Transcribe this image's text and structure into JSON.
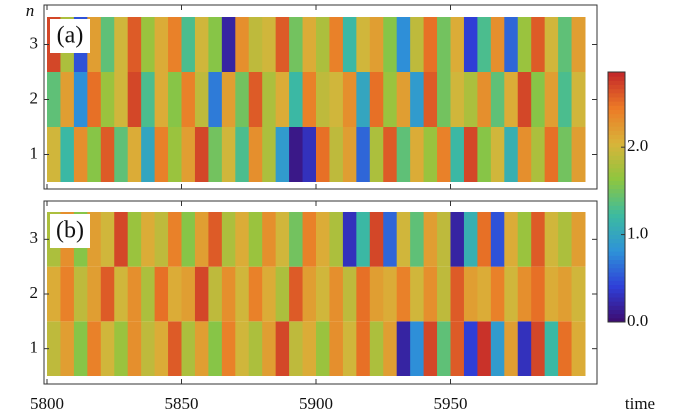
{
  "chart_data": {
    "type": "heatmap",
    "xlabel": "time",
    "ylabel": "n",
    "xlim": [
      5800,
      6000
    ],
    "xticks": [
      5800,
      5850,
      5900,
      5950
    ],
    "ylim": [
      0.5,
      3.5
    ],
    "yticks": [
      1,
      2,
      3
    ],
    "colormap": [
      "#3d0b6e",
      "#2f3fd8",
      "#2e93d8",
      "#3cbba0",
      "#8ec63f",
      "#d8b43a",
      "#ec7a26",
      "#c3262a"
    ],
    "colorbar": {
      "lim": [
        0,
        2.86
      ],
      "ticks": [
        {
          "value": 0,
          "label": "0.0"
        },
        {
          "value": 1,
          "label": "1.0"
        },
        {
          "value": 2,
          "label": "2.0"
        }
      ]
    },
    "panels": [
      {
        "label": "(a)",
        "rows": [
          [
            2.0,
            1.2,
            2.3,
            1.6,
            2.6,
            1.4,
            2.1,
            1.0,
            2.4,
            1.7,
            2.2,
            2.7,
            1.5,
            2.0,
            1.3,
            2.3,
            1.8,
            0.9,
            0.1,
            0.3,
            2.5,
            1.9,
            2.2,
            0.6,
            1.8,
            2.6,
            1.4,
            2.1,
            1.7,
            2.4,
            1.2,
            2.7,
            1.6,
            2.0,
            1.1,
            2.3,
            1.8,
            2.5,
            1.5,
            2.2
          ],
          [
            1.4,
            2.2,
            0.8,
            2.5,
            1.7,
            2.0,
            2.7,
            1.3,
            2.1,
            1.6,
            2.4,
            1.9,
            0.7,
            2.2,
            1.5,
            2.6,
            1.8,
            2.1,
            1.2,
            2.4,
            1.9,
            2.0,
            2.3,
            1.0,
            2.5,
            1.7,
            2.2,
            0.9,
            2.6,
            1.5,
            2.0,
            1.8,
            2.3,
            1.4,
            2.1,
            2.7,
            1.6,
            2.2,
            1.3,
            2.0
          ],
          [
            2.7,
            1.8,
            0.5,
            2.2,
            1.4,
            2.0,
            2.6,
            1.7,
            2.1,
            2.4,
            1.3,
            2.0,
            1.6,
            0.2,
            2.3,
            1.9,
            2.0,
            2.6,
            1.5,
            2.1,
            1.8,
            2.4,
            1.2,
            2.0,
            2.2,
            1.6,
            0.8,
            1.9,
            2.5,
            1.5,
            2.1,
            0.4,
            1.3,
            2.3,
            0.6,
            1.7,
            2.6,
            2.0,
            1.4,
            2.2
          ]
        ]
      },
      {
        "label": "(b)",
        "rows": [
          [
            1.9,
            2.2,
            1.6,
            2.4,
            2.0,
            1.7,
            2.3,
            1.9,
            2.1,
            2.6,
            1.8,
            2.2,
            1.6,
            2.4,
            2.0,
            1.8,
            2.2,
            2.7,
            1.9,
            2.1,
            1.7,
            2.3,
            2.0,
            2.5,
            1.8,
            2.2,
            0.2,
            0.8,
            2.7,
            1.4,
            2.6,
            0.4,
            2.8,
            0.9,
            2.2,
            0.3,
            2.7,
            1.2,
            2.5,
            2.1
          ],
          [
            2.1,
            2.4,
            1.9,
            2.2,
            2.6,
            2.0,
            2.3,
            1.8,
            2.5,
            2.1,
            2.2,
            2.7,
            1.9,
            2.3,
            2.0,
            2.4,
            2.1,
            1.8,
            2.6,
            2.2,
            2.0,
            2.3,
            1.9,
            2.5,
            2.2,
            2.1,
            2.4,
            2.0,
            2.3,
            1.9,
            2.6,
            2.2,
            2.1,
            2.4,
            2.0,
            2.3,
            2.5,
            2.1,
            2.2,
            2.0
          ],
          [
            1.8,
            2.3,
            1.6,
            2.2,
            2.0,
            2.7,
            1.7,
            2.1,
            1.9,
            2.4,
            1.6,
            2.2,
            2.6,
            1.8,
            2.1,
            1.7,
            2.3,
            2.0,
            1.5,
            2.4,
            2.1,
            1.8,
            0.3,
            1.2,
            2.7,
            0.6,
            2.0,
            1.4,
            2.2,
            1.9,
            0.2,
            1.1,
            2.5,
            0.5,
            2.1,
            1.7,
            2.6,
            2.0,
            1.8,
            2.2
          ]
        ]
      }
    ]
  }
}
